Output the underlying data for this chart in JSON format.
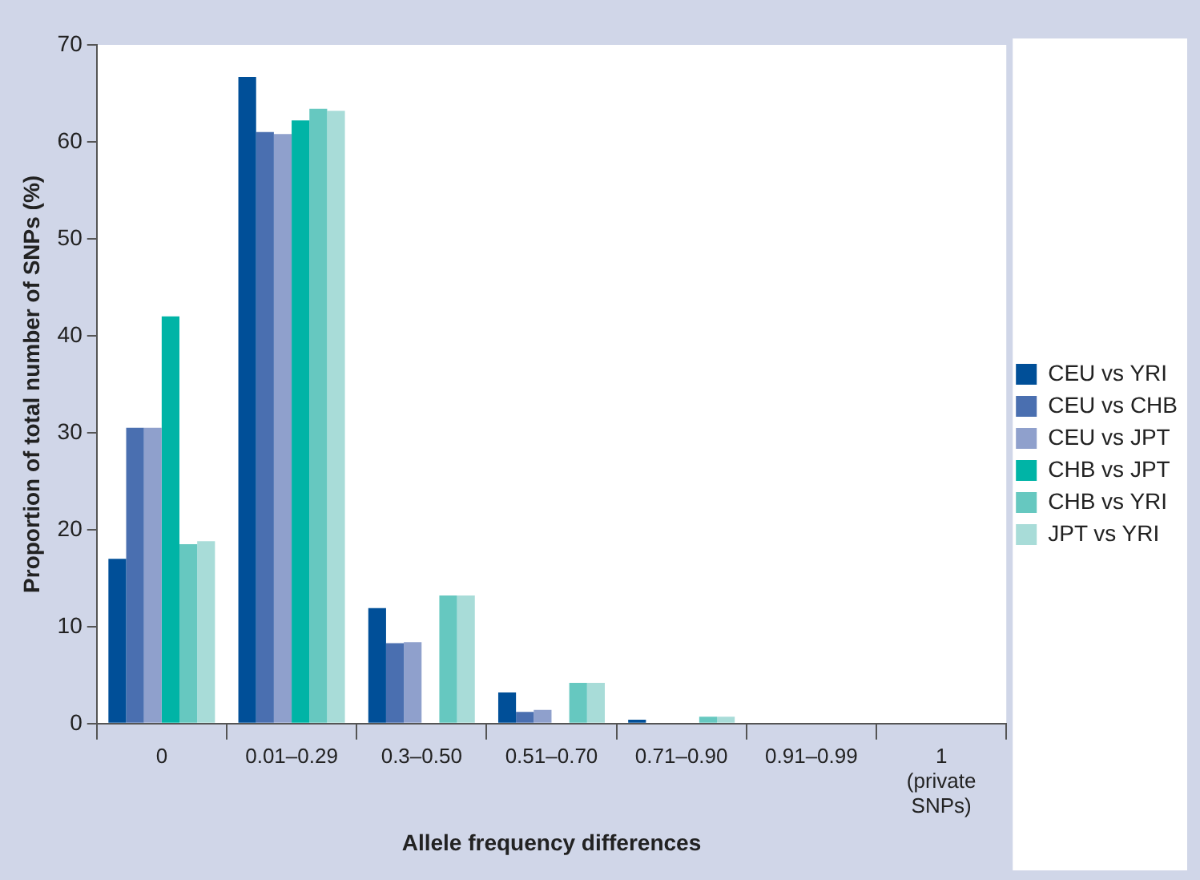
{
  "chart_data": {
    "type": "bar",
    "xlabel": "Allele frequency differences",
    "ylabel": "Proportion of total number of SNPs (%)",
    "categories": [
      "0",
      "0.01–0.29",
      "0.3–0.50",
      "0.51–0.70",
      "0.71–0.90",
      "0.91–0.99",
      "1 (private SNPs)"
    ],
    "series": [
      {
        "name": "CEU vs YRI",
        "color": "#004f98",
        "values": [
          17,
          66.7,
          11.9,
          3.2,
          0.4,
          0,
          0
        ]
      },
      {
        "name": "CEU vs CHB",
        "color": "#4a6fb0",
        "values": [
          30.5,
          61,
          8.3,
          1.2,
          0,
          0,
          0
        ]
      },
      {
        "name": "CEU vs JPT",
        "color": "#8fa0cc",
        "values": [
          30.5,
          60.8,
          8.4,
          1.4,
          0,
          0,
          0
        ]
      },
      {
        "name": "CHB vs JPT",
        "color": "#00b4a6",
        "values": [
          42,
          62.2,
          0,
          0,
          0,
          0,
          0
        ]
      },
      {
        "name": "CHB vs YRI",
        "color": "#66c8c0",
        "values": [
          18.5,
          63.4,
          13.2,
          4.2,
          0.7,
          0,
          0
        ]
      },
      {
        "name": "JPT vs YRI",
        "color": "#a8dcd8",
        "values": [
          18.8,
          63.2,
          13.2,
          4.2,
          0.7,
          0,
          0
        ]
      }
    ],
    "ylim": [
      0,
      70
    ],
    "yticks": [
      0,
      10,
      20,
      30,
      40,
      50,
      60,
      70
    ],
    "grid": false,
    "legend": "right"
  }
}
